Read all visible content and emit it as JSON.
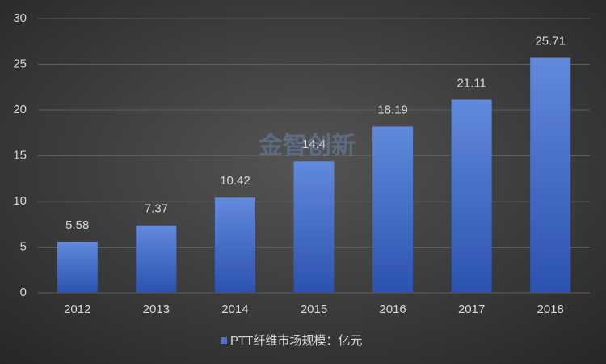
{
  "chart_data": {
    "type": "bar",
    "watermark": "金智创新",
    "categories": [
      "2012",
      "2013",
      "2014",
      "2015",
      "2016",
      "2017",
      "2018"
    ],
    "series": [
      {
        "name": "PTT纤维市场规模：亿元",
        "color": "#4a70c8",
        "values": [
          5.58,
          7.37,
          10.42,
          14.4,
          18.19,
          21.11,
          25.71
        ]
      }
    ],
    "ylim": [
      0,
      30
    ],
    "yticks": [
      0,
      5,
      10,
      15,
      20,
      25,
      30
    ],
    "grid": true,
    "legend": "bottom"
  }
}
